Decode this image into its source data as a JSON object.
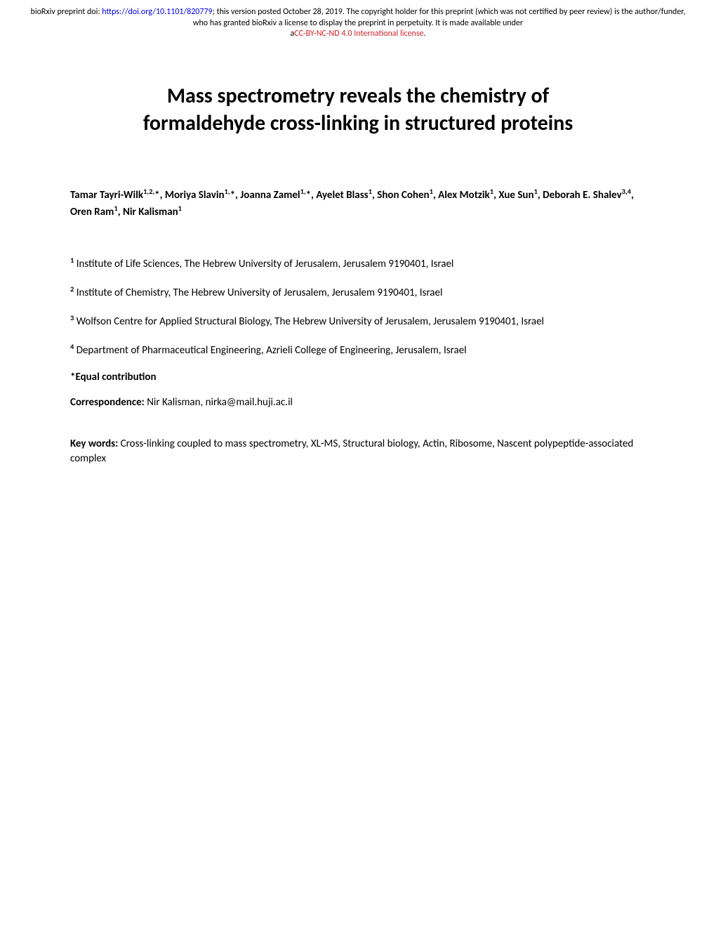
{
  "header": {
    "prefix": "bioRxiv preprint doi: ",
    "doi_url": "https://doi.org/10.1101/820779",
    "post_doi": "; this version posted October 28, 2019. The copyright holder for this preprint (which was not certified by peer review) is the author/funder, who has granted bioRxiv a license to display the preprint in perpetuity. It is made available under",
    "prefix2": "a",
    "license_text": "CC-BY-NC-ND 4.0 International license",
    "suffix": "."
  },
  "title_line1": "Mass spectrometry reveals the chemistry of",
  "title_line2": "formaldehyde cross-linking in structured proteins",
  "authors_html": "Tamar Tayri-Wilk<sup>1,2,</sup>*, Moriya Slavin<sup>1,</sup>*, Joanna Zamel<sup>1,</sup>*, Ayelet Blass<sup>1</sup>, Shon Cohen<sup>1</sup>, Alex Motzik<sup>1</sup>, Xue Sun<sup>1</sup>, Deborah E. Shalev<sup>3,4</sup>, Oren Ram<sup>1</sup>, Nir Kalisman<sup>1</sup>",
  "affiliations": [
    {
      "num": "1",
      "text": " Institute of Life Sciences, The Hebrew University of Jerusalem, Jerusalem 9190401, Israel"
    },
    {
      "num": "2",
      "text": " Institute of Chemistry, The Hebrew University of Jerusalem, Jerusalem 9190401, Israel"
    },
    {
      "num": "3",
      "text": " Wolfson Centre for Applied Structural Biology, The Hebrew University of Jerusalem, Jerusalem 9190401, Israel"
    },
    {
      "num": "4",
      "text": " Department of Pharmaceutical Engineering, Azrieli College of Engineering, Jerusalem, Israel"
    }
  ],
  "equal_contrib": "*Equal contribution",
  "correspondence_label": "Correspondence: ",
  "correspondence_text": "Nir Kalisman, nirka@mail.huji.ac.il",
  "keywords_label": "Key words: ",
  "keywords_text": "Cross-linking coupled to mass spectrometry, XL-MS, Structural biology, Actin, Ribosome, Nascent polypeptide-associated complex"
}
